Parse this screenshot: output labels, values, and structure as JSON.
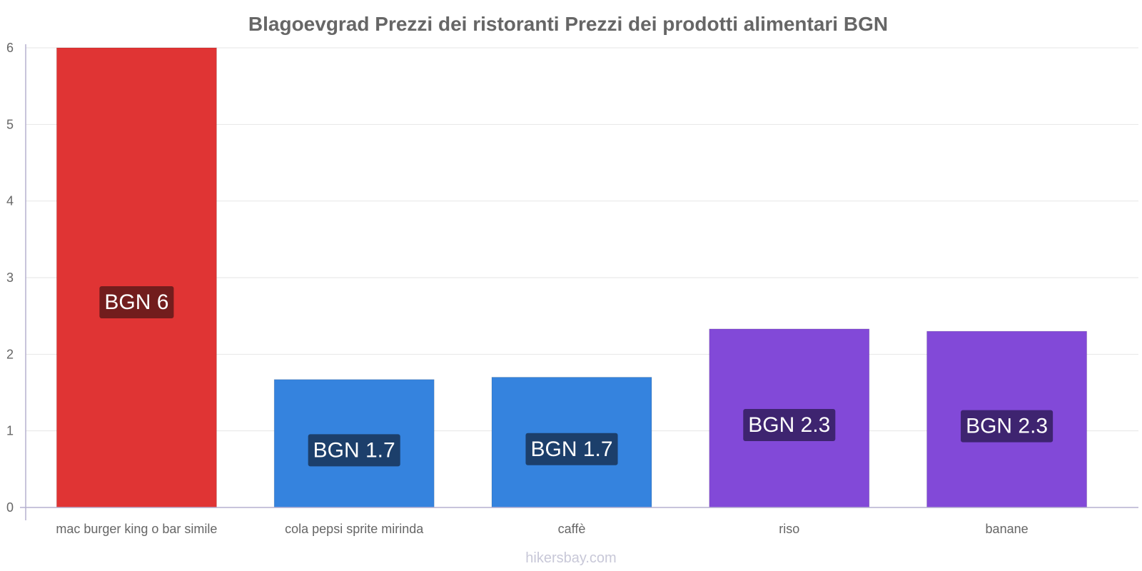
{
  "chart_data": {
    "type": "bar",
    "title": "Blagoevgrad Prezzi dei ristoranti Prezzi dei prodotti alimentari BGN",
    "categories": [
      "mac burger king o bar simile",
      "cola pepsi sprite mirinda",
      "caffè",
      "riso",
      "banane"
    ],
    "values": [
      6,
      1.67,
      1.7,
      2.33,
      2.3
    ],
    "value_labels": [
      "BGN 6",
      "BGN 1.7",
      "BGN 1.7",
      "BGN 2.3",
      "BGN 2.3"
    ],
    "bar_colors": [
      "#e03434",
      "#3583de",
      "#3583de",
      "#8249d8",
      "#8249d8"
    ],
    "label_bg_colors": [
      "#721d1d",
      "#1c3f6b",
      "#1c3f6b",
      "#3e2470",
      "#3e2470"
    ],
    "ylim": [
      0,
      6
    ],
    "yticks": [
      "0",
      "1",
      "2",
      "3",
      "4",
      "5",
      "6"
    ],
    "xlabel": "",
    "ylabel": "",
    "grid": true,
    "legend": "none"
  },
  "watermark": "hikersbay.com"
}
